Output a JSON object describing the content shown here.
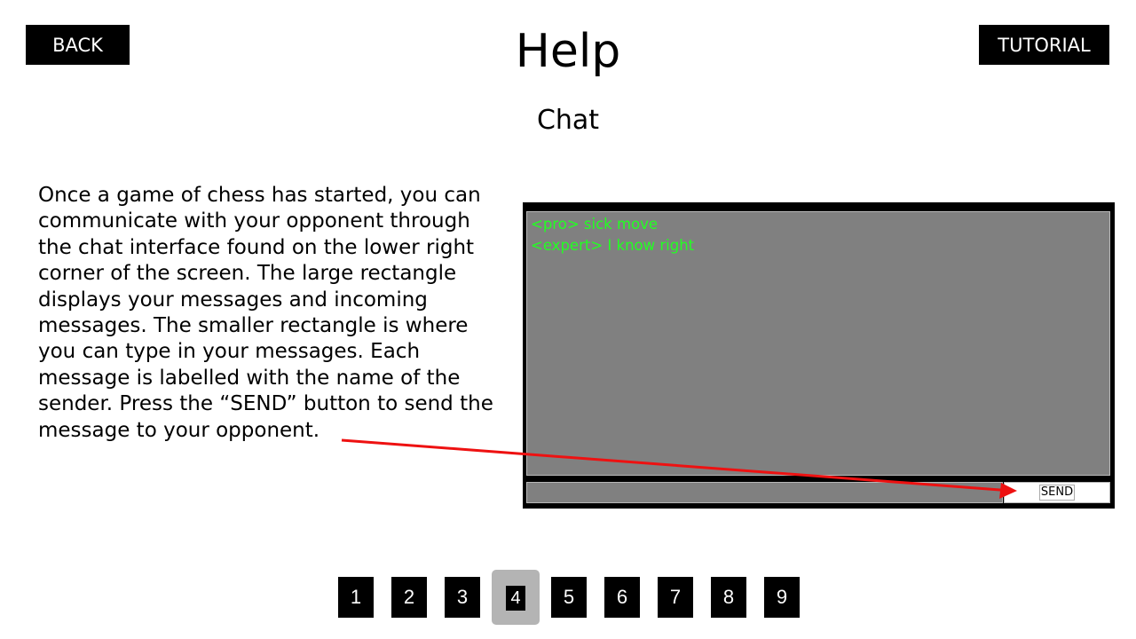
{
  "header": {
    "back_label": "BACK",
    "tutorial_label": "TUTORIAL",
    "title": "Help",
    "subtitle": "Chat"
  },
  "description": "Once a game of chess has started, you can communicate with your opponent through the chat interface found on the lower right corner of the screen. The large rectangle displays your messages and incoming messages. The smaller rectangle is where you can type in your messages. Each message is labelled with the name of the sender. Press the “SEND” button to send the message to your opponent.",
  "chat": {
    "messages": [
      "<pro> sick move",
      "<expert> I know right"
    ],
    "input_value": "",
    "send_label": "SEND",
    "message_color": "#22ff22"
  },
  "annotation": {
    "arrow_color": "#ee1111"
  },
  "pager": {
    "pages": [
      "1",
      "2",
      "3",
      "4",
      "5",
      "6",
      "7",
      "8",
      "9"
    ],
    "current": "4"
  }
}
